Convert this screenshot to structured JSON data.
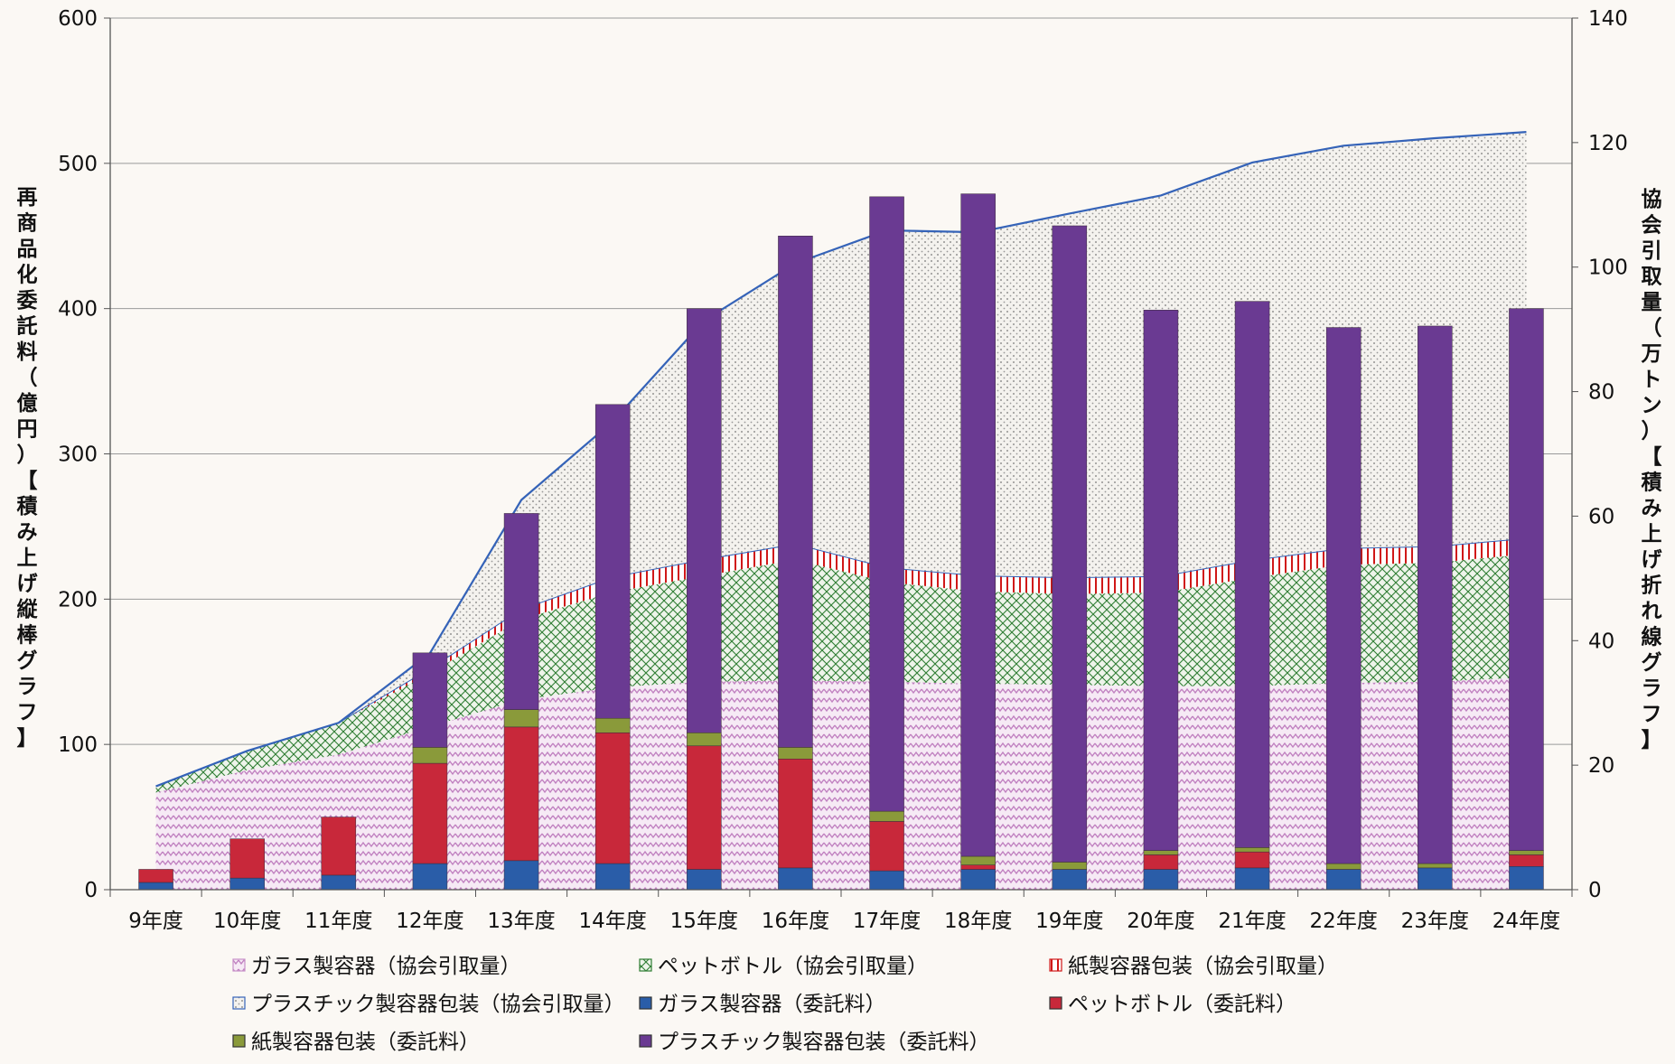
{
  "chart_data": {
    "type": "bar",
    "categories": [
      "9年度",
      "10年度",
      "11年度",
      "12年度",
      "13年度",
      "14年度",
      "15年度",
      "16年度",
      "17年度",
      "18年度",
      "19年度",
      "20年度",
      "21年度",
      "22年度",
      "23年度",
      "24年度"
    ],
    "y_left": {
      "label_chars": [
        "再",
        "商",
        "品",
        "化",
        "委",
        "託",
        "料",
        "（",
        "億",
        "円",
        "）",
        "【",
        "積",
        "み",
        "上",
        "げ",
        "縦",
        "棒",
        "グ",
        "ラ",
        "フ",
        "】"
      ],
      "ylim": [
        0,
        600
      ],
      "ticks": [
        0,
        100,
        200,
        300,
        400,
        500,
        600
      ]
    },
    "y_right": {
      "label_chars": [
        "協",
        "会",
        "引",
        "取",
        "量",
        "（",
        "万",
        "ト",
        "ン",
        "）",
        "【",
        "積",
        "み",
        "上",
        "げ",
        "折",
        "れ",
        "線",
        "グ",
        "ラ",
        "フ",
        "】"
      ],
      "ylim": [
        0,
        140
      ],
      "ticks": [
        0,
        20,
        40,
        60,
        80,
        100,
        120,
        140
      ]
    },
    "grid": true,
    "legend_position": "bottom",
    "area_series": [
      {
        "name": "ガラス製容器（協会引取量）",
        "color": "#c890c8",
        "pattern": "zigzag",
        "values": [
          15.6,
          19.2,
          21.7,
          26.2,
          30.5,
          32.5,
          33.4,
          33.6,
          33.4,
          33.1,
          32.9,
          32.7,
          32.7,
          33.2,
          33.4,
          34.1
        ]
      },
      {
        "name": "ペットボトル（協会引取量）",
        "color": "#2e7d32",
        "pattern": "crosshatch",
        "values": [
          1.0,
          3.1,
          5.1,
          8.6,
          12.9,
          15.3,
          17.0,
          19.4,
          16.0,
          14.8,
          14.6,
          15.0,
          17.4,
          19.0,
          19.1,
          19.8
        ]
      },
      {
        "name": "紙製容器包装（協会引取量）",
        "color": "#d01818",
        "pattern": "stripes",
        "values": [
          0,
          0,
          0,
          0.7,
          1.6,
          2.4,
          2.6,
          2.5,
          2.3,
          2.5,
          2.6,
          2.6,
          2.8,
          2.6,
          2.6,
          2.5
        ]
      },
      {
        "name": "プラスチック製容器包装（協会引取量）",
        "color": "#3563b8",
        "pattern": "dots",
        "values": [
          0,
          0,
          0,
          2.5,
          17.6,
          25.0,
          38.4,
          45.1,
          54.2,
          55.2,
          58.5,
          61.2,
          63.9,
          64.7,
          65.6,
          65.3
        ]
      }
    ],
    "bar_series": [
      {
        "name": "ガラス製容器（委託料）",
        "color": "#2a5da8",
        "values": [
          5,
          8,
          10,
          18,
          20,
          18,
          14,
          15,
          13,
          14,
          14,
          14,
          15,
          14,
          15,
          16
        ]
      },
      {
        "name": "ペットボトル（委託料）",
        "color": "#c8283a",
        "values": [
          9,
          27,
          40,
          69,
          92,
          90,
          85,
          75,
          34,
          3,
          0,
          10,
          11,
          0,
          0,
          8
        ]
      },
      {
        "name": "紙製容器包装（委託料）",
        "color": "#8a9a3a",
        "values": [
          0,
          0,
          0,
          11,
          12,
          10,
          9,
          8,
          7,
          6,
          5,
          3,
          3,
          4,
          3,
          3
        ]
      },
      {
        "name": "プラスチック製容器包装（委託料）",
        "color": "#6a3a92",
        "values": [
          0,
          0,
          0,
          65,
          135,
          216,
          292,
          352,
          423,
          456,
          438,
          372,
          376,
          369,
          370,
          373
        ]
      }
    ]
  }
}
